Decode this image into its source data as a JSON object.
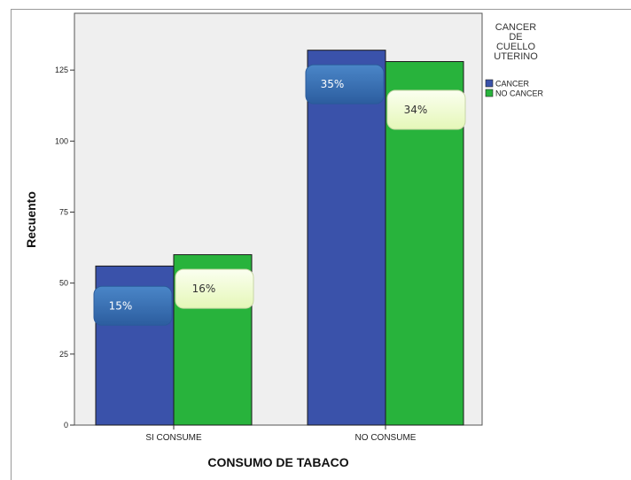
{
  "chart_data": {
    "type": "bar",
    "title": "",
    "xlabel": "CONSUMO DE TABACO",
    "ylabel": "Recuento",
    "categories": [
      "SI CONSUME",
      "NO CONSUME"
    ],
    "ylim": [
      0,
      145
    ],
    "yticks": [
      0,
      25,
      50,
      75,
      100,
      125
    ],
    "grid": false,
    "legend": {
      "title_lines": [
        "CANCER",
        "DE",
        "CUELLO",
        "UTERINO"
      ],
      "position": "right"
    },
    "series": [
      {
        "name": "CANCER",
        "color": "#3a52aa",
        "values": [
          56,
          132
        ],
        "labels": [
          "15%",
          "35%"
        ]
      },
      {
        "name": "NO CANCER",
        "color": "#28b33c",
        "values": [
          60,
          128
        ],
        "labels": [
          "16%",
          "34%"
        ]
      }
    ]
  },
  "colors": {
    "plot_background": "#efefef",
    "bar_outline": "#1a1a1a",
    "label_cancer_bg": "#3a6fb5",
    "label_nocancer_bg": "#f3fcd2"
  }
}
